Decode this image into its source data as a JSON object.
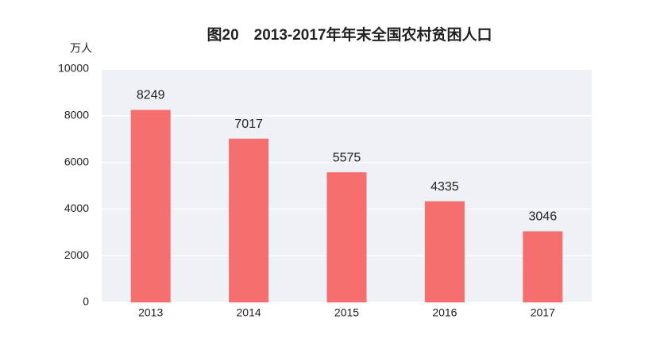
{
  "chart_data": {
    "type": "bar",
    "title": "图20　2013-2017年年末全国农村贫困人口",
    "y_axis_label": "万人",
    "categories": [
      "2013",
      "2014",
      "2015",
      "2016",
      "2017"
    ],
    "values": [
      8249,
      7017,
      5575,
      4335,
      3046
    ],
    "color": "#f76e6e",
    "ylim": [
      0,
      10000
    ],
    "yticks": [
      0,
      2000,
      4000,
      6000,
      8000,
      10000
    ],
    "grid": true
  }
}
